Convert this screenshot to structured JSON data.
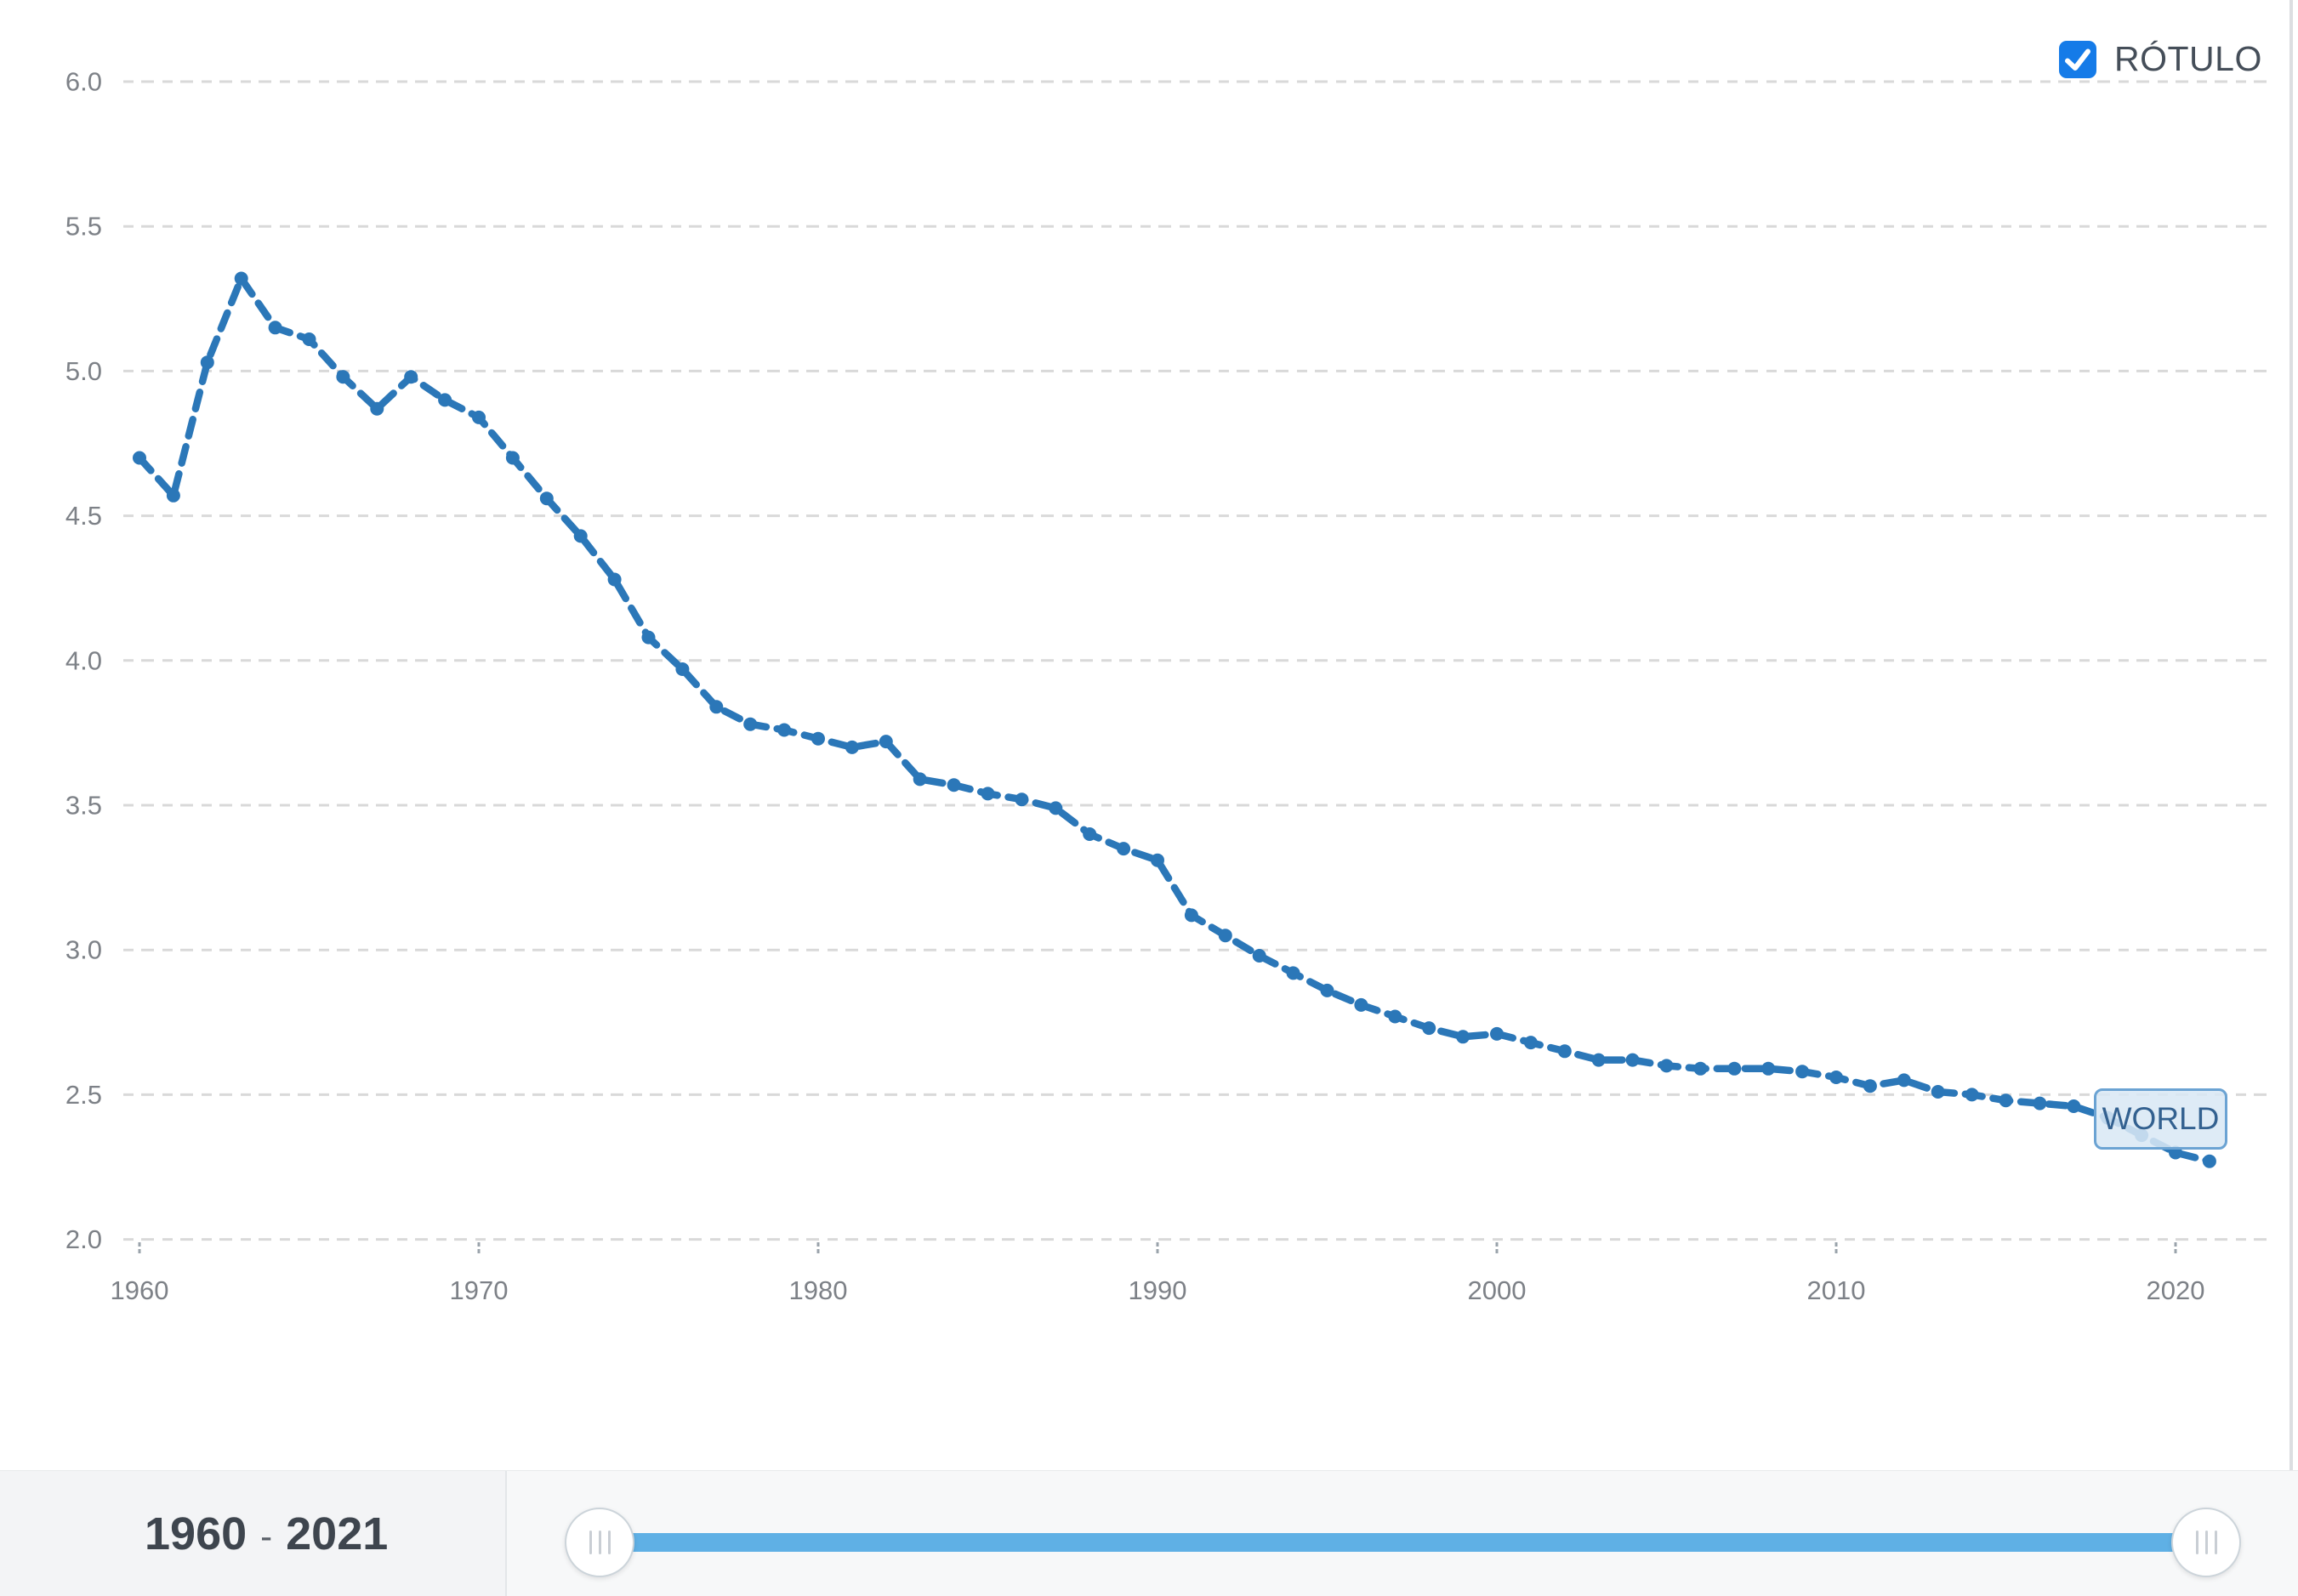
{
  "legend": {
    "label": "RÓTULO",
    "checked": true
  },
  "series_label": {
    "text": "WORLD"
  },
  "range_bar": {
    "start": "1960",
    "separator": "-",
    "end": "2021"
  },
  "colors": {
    "line": "#2b77b8",
    "checkbox": "#157be8",
    "check": "#ffffff",
    "slider_track": "#5fb0e5",
    "world_chip_border": "#6ba3d3",
    "world_chip_bg": "#d9e8f5",
    "grid": "#d9d9d9",
    "axis_text": "#7d8187",
    "tick": "#9aa3ab",
    "range_text": "#3e454e"
  },
  "chart_data": {
    "type": "line",
    "title": "",
    "xlabel": "",
    "ylabel": "",
    "ylim": [
      2.0,
      6.0
    ],
    "ytick_step": 0.5,
    "ytick_labels": [
      "2.0",
      "2.5",
      "3.0",
      "3.5",
      "4.0",
      "4.5",
      "5.0",
      "5.5",
      "6.0"
    ],
    "xticks": [
      1960,
      1970,
      1980,
      1990,
      2000,
      2010,
      2020
    ],
    "grid": "dashed-horizontal",
    "legend_position": "top-right",
    "x": [
      1960,
      1961,
      1962,
      1963,
      1964,
      1965,
      1966,
      1967,
      1968,
      1969,
      1970,
      1971,
      1972,
      1973,
      1974,
      1975,
      1976,
      1977,
      1978,
      1979,
      1980,
      1981,
      1982,
      1983,
      1984,
      1985,
      1986,
      1987,
      1988,
      1989,
      1990,
      1991,
      1992,
      1993,
      1994,
      1995,
      1996,
      1997,
      1998,
      1999,
      2000,
      2001,
      2002,
      2003,
      2004,
      2005,
      2006,
      2007,
      2008,
      2009,
      2010,
      2011,
      2012,
      2013,
      2014,
      2015,
      2016,
      2017,
      2018,
      2019,
      2020,
      2021
    ],
    "series": [
      {
        "name": "WORLD",
        "values": [
          4.7,
          4.57,
          5.03,
          5.32,
          5.15,
          5.11,
          4.98,
          4.87,
          4.98,
          4.9,
          4.84,
          4.7,
          4.56,
          4.43,
          4.28,
          4.08,
          3.97,
          3.84,
          3.78,
          3.76,
          3.73,
          3.7,
          3.72,
          3.59,
          3.57,
          3.54,
          3.52,
          3.49,
          3.4,
          3.35,
          3.31,
          3.12,
          3.05,
          2.98,
          2.92,
          2.86,
          2.81,
          2.77,
          2.73,
          2.7,
          2.71,
          2.68,
          2.65,
          2.62,
          2.62,
          2.6,
          2.59,
          2.59,
          2.59,
          2.58,
          2.56,
          2.53,
          2.55,
          2.51,
          2.5,
          2.48,
          2.47,
          2.46,
          2.42,
          2.36,
          2.3,
          2.27
        ]
      }
    ]
  }
}
